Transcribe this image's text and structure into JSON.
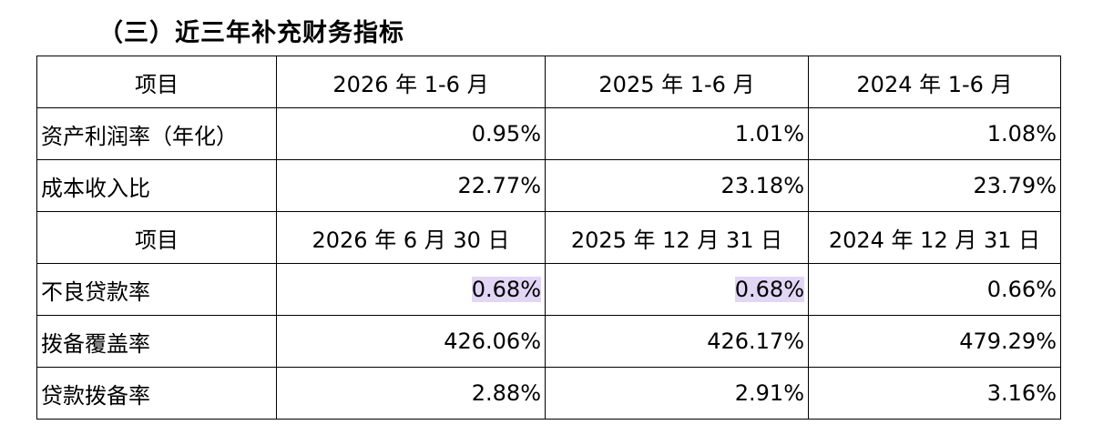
{
  "title": "（三）近三年补充财务指标",
  "table": {
    "section1": {
      "header": [
        "项目",
        "2026 年 1-6 月",
        "2025 年 1-6 月",
        "2024 年 1-6 月"
      ],
      "rows": [
        {
          "label": "资产利润率（年化）",
          "values": [
            "0.95%",
            "1.01%",
            "1.08%"
          ]
        },
        {
          "label": "成本收入比",
          "values": [
            "22.77%",
            "23.18%",
            "23.79%"
          ]
        }
      ]
    },
    "section2": {
      "header": [
        "项目",
        "2026 年 6 月 30 日",
        "2025 年 12 月 31 日",
        "2024 年 12 月 31 日"
      ],
      "rows": [
        {
          "label": "不良贷款率",
          "values": [
            "0.68%",
            "0.68%",
            "0.66%"
          ]
        },
        {
          "label": "拨备覆盖率",
          "values": [
            "426.06%",
            "426.17%",
            "479.29%"
          ]
        },
        {
          "label": "贷款拨备率",
          "values": [
            "2.88%",
            "2.91%",
            "3.16%"
          ]
        }
      ]
    },
    "highlight_color": "#e2d6f5"
  }
}
